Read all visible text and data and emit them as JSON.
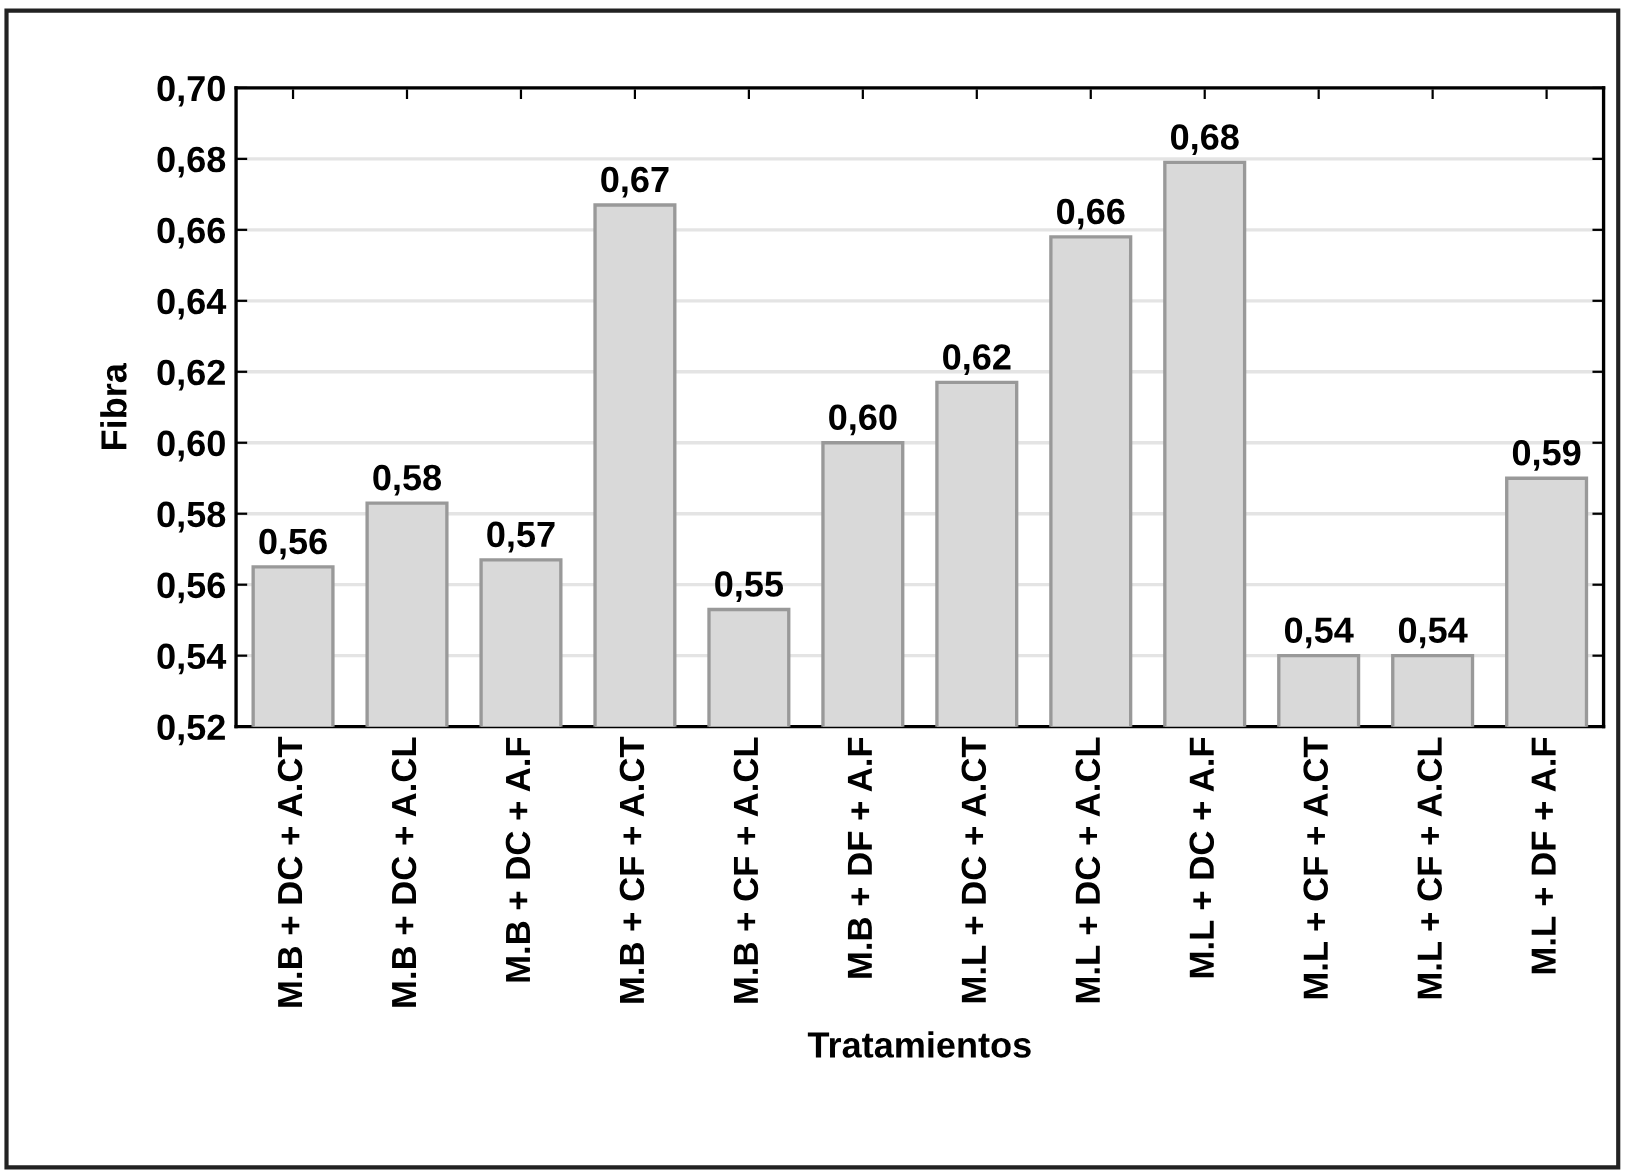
{
  "chart_data": {
    "type": "bar",
    "xlabel": "Tratamientos",
    "ylabel": "Fibra",
    "categories": [
      "M.B + DC + A.CT",
      "M.B + DC + A.CL",
      "M.B + DC + A.F",
      "M.B + CF + A.CT",
      "M.B + CF + A.CL",
      "M.B + DF + A.F",
      "M.L + DC + A.CT",
      "M.L + DC + A.CL",
      "M.L + DC + A.F",
      "M.L + CF + A.CT",
      "M.L + CF + A.CL",
      "M.L + DF + A.F"
    ],
    "values": [
      0.565,
      0.583,
      0.567,
      0.667,
      0.553,
      0.6,
      0.617,
      0.658,
      0.679,
      0.54,
      0.54,
      0.59
    ],
    "value_labels": [
      "0,56",
      "0,58",
      "0,57",
      "0,67",
      "0,55",
      "0,60",
      "0,62",
      "0,66",
      "0,68",
      "0,54",
      "0,54",
      "0,59"
    ],
    "color": "#d9d9d9",
    "ylim": [
      0.52,
      0.7
    ],
    "yticks": [
      {
        "value": 0.52,
        "label": "0,52"
      },
      {
        "value": 0.54,
        "label": "0,54"
      },
      {
        "value": 0.56,
        "label": "0,56"
      },
      {
        "value": 0.58,
        "label": "0,58"
      },
      {
        "value": 0.6,
        "label": "0,60"
      },
      {
        "value": 0.62,
        "label": "0,62"
      },
      {
        "value": 0.64,
        "label": "0,64"
      },
      {
        "value": 0.66,
        "label": "0,66"
      },
      {
        "value": 0.68,
        "label": "0,68"
      },
      {
        "value": 0.7,
        "label": "0,70"
      }
    ],
    "grid": "y"
  }
}
